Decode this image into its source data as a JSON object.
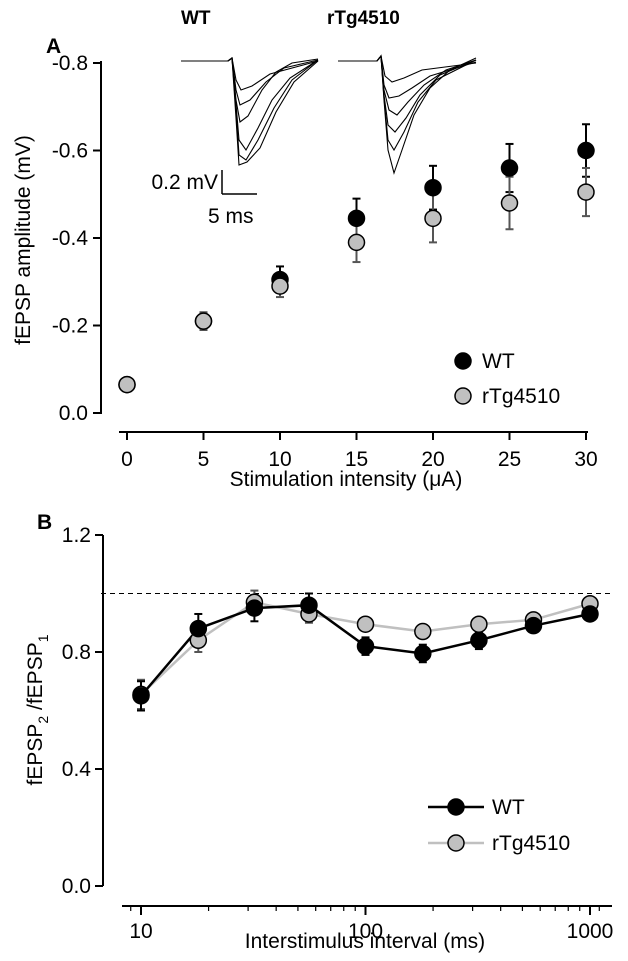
{
  "chart_data": [
    {
      "panel": "A",
      "type": "scatter",
      "xlabel": "Stimulation intensity (μA)",
      "ylabel": "fEPSP amplitude (mV)",
      "xlim": [
        -1,
        31
      ],
      "ylim": [
        0,
        -0.8
      ],
      "x_ticks": [
        0,
        5,
        10,
        15,
        20,
        25,
        30
      ],
      "y_ticks": [
        0.0,
        -0.2,
        -0.4,
        -0.6,
        -0.8
      ],
      "y_tick_labels": [
        "0.0",
        "-0.2",
        "-0.4",
        "-0.6",
        "-0.8"
      ],
      "legend_position": "bottom-right",
      "grid": false,
      "series": [
        {
          "name": "WT",
          "color": "#000000",
          "x": [
            0,
            5,
            10,
            15,
            20,
            25,
            30
          ],
          "y": [
            -0.065,
            -0.21,
            -0.305,
            -0.445,
            -0.515,
            -0.56,
            -0.6
          ],
          "err": [
            0.01,
            0.02,
            0.03,
            0.045,
            0.05,
            0.055,
            0.06
          ]
        },
        {
          "name": "rTg4510",
          "color": "#c0c0c0",
          "x": [
            0,
            5,
            10,
            15,
            20,
            25,
            30
          ],
          "y": [
            -0.065,
            -0.21,
            -0.29,
            -0.39,
            -0.445,
            -0.48,
            -0.505
          ],
          "err": [
            0.01,
            0.02,
            0.025,
            0.045,
            0.055,
            0.06,
            0.055
          ]
        }
      ],
      "inset": {
        "titles": [
          "WT",
          "rTg4510"
        ],
        "scale_y": "0.2 mV",
        "scale_x": "5 ms"
      }
    },
    {
      "panel": "B",
      "type": "line",
      "xlabel": "Interstimulus interval (ms)",
      "ylabel_main": "fEPSP",
      "ylabel_sub2": "2",
      "ylabel_mid": " /fEPSP",
      "ylabel_sub1": "1",
      "xscale": "log",
      "xlim": [
        8,
        1100
      ],
      "ylim": [
        0,
        1.2
      ],
      "x_ticks": [
        10,
        100,
        1000
      ],
      "y_ticks": [
        0.0,
        0.4,
        0.8,
        1.2
      ],
      "y_tick_labels": [
        "0.0",
        "0.4",
        "0.8",
        "1.2"
      ],
      "reference_line": 1.0,
      "legend_position": "bottom-right",
      "grid": false,
      "series": [
        {
          "name": "WT",
          "color": "#000000",
          "x": [
            10,
            18,
            32,
            56,
            100,
            180,
            320,
            560,
            1000
          ],
          "y": [
            0.65,
            0.88,
            0.95,
            0.96,
            0.82,
            0.795,
            0.84,
            0.89,
            0.93
          ],
          "err": [
            0.05,
            0.05,
            0.045,
            0.04,
            0.03,
            0.03,
            0.03,
            0.02,
            0.02
          ]
        },
        {
          "name": "rTg4510",
          "color": "#c0c0c0",
          "x": [
            10,
            18,
            32,
            56,
            100,
            180,
            320,
            560,
            1000
          ],
          "y": [
            0.655,
            0.84,
            0.97,
            0.93,
            0.895,
            0.87,
            0.895,
            0.91,
            0.965
          ],
          "err": [
            0.05,
            0.04,
            0.04,
            0.03,
            0.02,
            0.015,
            0.015,
            0.015,
            0.02
          ]
        }
      ]
    }
  ]
}
